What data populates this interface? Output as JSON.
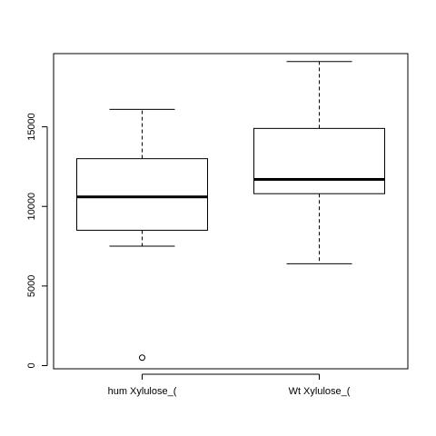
{
  "chart_data": {
    "type": "boxplot",
    "title": "",
    "xlabel": "",
    "ylabel": "",
    "ylim": [
      -200,
      19600
    ],
    "y_ticks": [
      0,
      5000,
      10000,
      15000
    ],
    "y_tick_labels": [
      "0",
      "5000",
      "10000",
      "15000"
    ],
    "grid": false,
    "legend": "none",
    "categories": [
      "hum Xylulose_(",
      "Wt Xylulose_("
    ],
    "boxes": [
      {
        "category": "hum Xylulose_(",
        "whisker_low": 7500,
        "q1": 8500,
        "median": 10600,
        "q3": 13000,
        "whisker_high": 16100,
        "outliers": [
          500
        ]
      },
      {
        "category": "Wt Xylulose_(",
        "whisker_low": 6400,
        "q1": 10800,
        "median": 11700,
        "q3": 14900,
        "whisker_high": 19100,
        "outliers": []
      }
    ],
    "colors": {
      "stroke": "#000000",
      "box_fill": "#ffffff",
      "background": "#ffffff"
    }
  }
}
